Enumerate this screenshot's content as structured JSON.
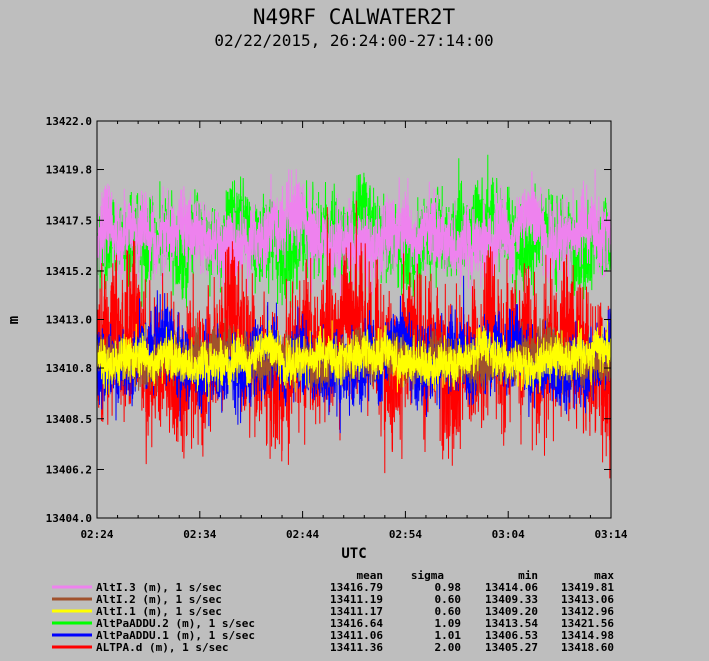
{
  "chart_data": {
    "type": "line",
    "title": "N49RF CALWATER2T",
    "subtitle": "02/22/2015, 26:24:00-27:14:00",
    "xlabel": "UTC",
    "ylabel": "m",
    "xlim": [
      "02:24",
      "03:14"
    ],
    "ylim": [
      13404.0,
      13422.0
    ],
    "x_ticks": [
      "02:24",
      "02:34",
      "02:44",
      "02:54",
      "03:04",
      "03:14"
    ],
    "y_ticks": [
      "13404.0",
      "13406.2",
      "13408.5",
      "13410.8",
      "13413.0",
      "13415.2",
      "13417.5",
      "13419.8",
      "13422.0"
    ],
    "grid": false,
    "legend_position": "bottom",
    "stats_headers": [
      "mean",
      "sigma",
      "min",
      "max"
    ],
    "series": [
      {
        "name": "AltI.3 (m), 1 s/sec",
        "color": "#ee82ee",
        "mean": "13416.79",
        "sigma": "0.98",
        "min": "13414.06",
        "max": "13419.81"
      },
      {
        "name": "AltI.2 (m), 1 s/sec",
        "color": "#a0522d",
        "mean": "13411.19",
        "sigma": "0.60",
        "min": "13409.33",
        "max": "13413.06"
      },
      {
        "name": "AltI.1 (m), 1 s/sec",
        "color": "#ffff00",
        "mean": "13411.17",
        "sigma": "0.60",
        "min": "13409.20",
        "max": "13412.96"
      },
      {
        "name": "AltPaADDU.2 (m), 1 s/sec",
        "color": "#00ff00",
        "mean": "13416.64",
        "sigma": "1.09",
        "min": "13413.54",
        "max": "13421.56"
      },
      {
        "name": "AltPaADDU.1 (m), 1 s/sec",
        "color": "#0000ff",
        "mean": "13411.06",
        "sigma": "1.01",
        "min": "13406.53",
        "max": "13414.98"
      },
      {
        "name": "ALTPA.d (m), 1 s/sec",
        "color": "#ff0000",
        "mean": "13411.36",
        "sigma": "2.00",
        "min": "13405.27",
        "max": "13418.60"
      }
    ]
  }
}
